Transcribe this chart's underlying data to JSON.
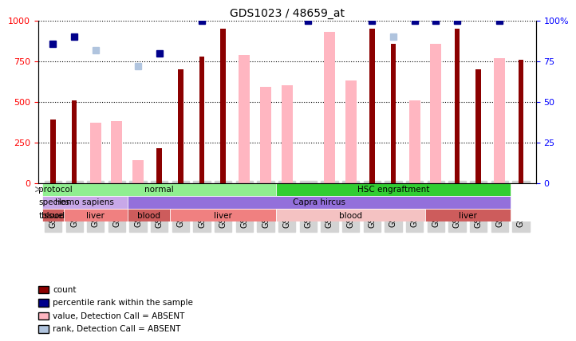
{
  "title": "GDS1023 / 48659_at",
  "samples": [
    "GSM31059",
    "GSM31063",
    "GSM31060",
    "GSM31061",
    "GSM31064",
    "GSM31067",
    "GSM31069",
    "GSM31072",
    "GSM31070",
    "GSM31071",
    "GSM31073",
    "GSM31075",
    "GSM31077",
    "GSM31078",
    "GSM31079",
    "GSM31085",
    "GSM31086",
    "GSM31091",
    "GSM31080",
    "GSM31082",
    "GSM31087",
    "GSM31089",
    "GSM31090"
  ],
  "count_values": [
    390,
    510,
    null,
    null,
    null,
    215,
    700,
    780,
    950,
    null,
    null,
    null,
    null,
    null,
    null,
    950,
    860,
    null,
    null,
    950,
    700,
    null,
    760
  ],
  "rank_values": [
    86,
    90,
    null,
    null,
    null,
    80,
    null,
    100,
    null,
    null,
    null,
    null,
    100,
    null,
    null,
    100,
    null,
    100,
    100,
    100,
    null,
    100,
    null
  ],
  "absent_count_values": [
    null,
    null,
    370,
    380,
    140,
    null,
    null,
    null,
    null,
    790,
    590,
    600,
    null,
    930,
    630,
    null,
    null,
    510,
    860,
    null,
    null,
    770,
    null
  ],
  "absent_rank_values": [
    null,
    null,
    82,
    null,
    72,
    null,
    null,
    null,
    null,
    null,
    null,
    null,
    null,
    null,
    null,
    null,
    90,
    null,
    null,
    null,
    null,
    null,
    null
  ],
  "count_color": "#8B0000",
  "rank_color": "#00008B",
  "absent_count_color": "#FFB6C1",
  "absent_rank_color": "#B0C4DE",
  "ylim_left": [
    0,
    1000
  ],
  "ylim_right": [
    0,
    100
  ],
  "yticks_left": [
    0,
    250,
    500,
    750,
    1000
  ],
  "yticks_right": [
    0,
    25,
    50,
    75,
    100
  ],
  "protocol_groups": [
    {
      "label": "normal",
      "start": 0,
      "end": 11,
      "color": "#90EE90"
    },
    {
      "label": "HSC engraftment",
      "start": 11,
      "end": 22,
      "color": "#32CD32"
    }
  ],
  "species_groups": [
    {
      "label": "Homo sapiens",
      "start": 0,
      "end": 4,
      "color": "#C8A8E8"
    },
    {
      "label": "Capra hircus",
      "start": 4,
      "end": 22,
      "color": "#9370DB"
    }
  ],
  "tissue_groups": [
    {
      "label": "blood",
      "start": 0,
      "end": 1,
      "color": "#CD5C5C"
    },
    {
      "label": "liver",
      "start": 1,
      "end": 4,
      "color": "#F08080"
    },
    {
      "label": "blood",
      "start": 4,
      "end": 6,
      "color": "#CD5C5C"
    },
    {
      "label": "liver",
      "start": 6,
      "end": 11,
      "color": "#F08080"
    },
    {
      "label": "blood",
      "start": 11,
      "end": 18,
      "color": "#F4C2C2"
    },
    {
      "label": "liver",
      "start": 18,
      "end": 22,
      "color": "#CD5C5C"
    }
  ],
  "legend_items": [
    {
      "label": "count",
      "color": "#8B0000",
      "marker": "s"
    },
    {
      "label": "percentile rank within the sample",
      "color": "#00008B",
      "marker": "s"
    },
    {
      "label": "value, Detection Call = ABSENT",
      "color": "#FFB6C1",
      "marker": "s"
    },
    {
      "label": "rank, Detection Call = ABSENT",
      "color": "#B0C4DE",
      "marker": "s"
    }
  ]
}
